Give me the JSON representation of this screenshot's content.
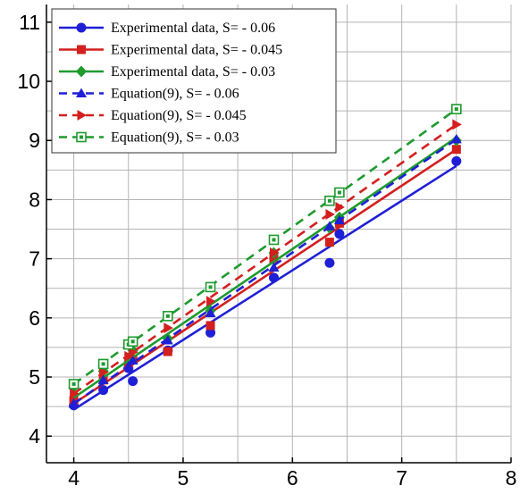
{
  "chart_data": {
    "type": "line",
    "title": "",
    "xlabel": "",
    "ylabel": "",
    "xlim": [
      3.75,
      8
    ],
    "ylim": [
      3.55,
      11.3
    ],
    "x_ticks": [
      "4",
      "5",
      "6",
      "7",
      "8"
    ],
    "y_ticks": [
      "4",
      "5",
      "6",
      "7",
      "8",
      "9",
      "10",
      "11"
    ],
    "grid": true,
    "legend_position": "top-left",
    "series": [
      {
        "name": "Experimental data, S= - 0.06",
        "color": "#1f1fd6",
        "dash": "solid",
        "marker": "circle",
        "points": [
          [
            4.0,
            4.52
          ],
          [
            4.27,
            4.78
          ],
          [
            4.5,
            5.15
          ],
          [
            4.54,
            4.93
          ],
          [
            4.86,
            5.45
          ],
          [
            5.25,
            5.75
          ],
          [
            5.83,
            6.68
          ],
          [
            6.34,
            6.93
          ],
          [
            6.43,
            7.42
          ],
          [
            7.5,
            8.65
          ]
        ],
        "trend": [
          [
            4.0,
            4.45
          ],
          [
            7.5,
            8.57
          ]
        ]
      },
      {
        "name": "Experimental data, S= - 0.045",
        "color": "#d41f1f",
        "dash": "solid",
        "marker": "square",
        "points": [
          [
            4.0,
            4.6
          ],
          [
            4.27,
            4.95
          ],
          [
            4.5,
            5.2
          ],
          [
            4.54,
            5.3
          ],
          [
            4.86,
            5.43
          ],
          [
            5.25,
            5.87
          ],
          [
            5.83,
            7.0
          ],
          [
            6.34,
            7.28
          ],
          [
            6.43,
            7.6
          ],
          [
            7.5,
            8.85
          ]
        ],
        "trend": [
          [
            4.0,
            4.55
          ],
          [
            7.5,
            8.85
          ]
        ]
      },
      {
        "name": "Experimental data, S= - 0.03",
        "color": "#1e9a2e",
        "dash": "solid",
        "marker": "diamond",
        "points": [
          [
            4.0,
            4.83
          ],
          [
            4.27,
            5.1
          ],
          [
            4.5,
            5.32
          ],
          [
            4.54,
            5.45
          ],
          [
            4.86,
            5.65
          ],
          [
            5.25,
            6.12
          ],
          [
            5.83,
            7.1
          ],
          [
            6.34,
            7.52
          ],
          [
            6.43,
            7.7
          ],
          [
            7.5,
            9.0
          ]
        ],
        "trend": [
          [
            4.0,
            4.65
          ],
          [
            7.5,
            9.05
          ]
        ]
      },
      {
        "name": "Equation(9), S= - 0.06",
        "color": "#1f1fd6",
        "dash": "dashed",
        "marker": "triangle-up",
        "points": [
          [
            4.0,
            4.55
          ],
          [
            4.27,
            4.95
          ],
          [
            4.5,
            5.18
          ],
          [
            4.54,
            5.28
          ],
          [
            4.86,
            5.62
          ],
          [
            5.25,
            6.08
          ],
          [
            5.83,
            6.85
          ],
          [
            6.34,
            7.55
          ],
          [
            6.43,
            7.65
          ],
          [
            7.5,
            9.02
          ]
        ],
        "trend": [
          [
            4.0,
            4.55
          ],
          [
            7.5,
            9.02
          ]
        ]
      },
      {
        "name": "Equation(9), S= - 0.045",
        "color": "#d41f1f",
        "dash": "dashed",
        "marker": "triangle-right",
        "points": [
          [
            4.0,
            4.72
          ],
          [
            4.27,
            5.08
          ],
          [
            4.5,
            5.35
          ],
          [
            4.54,
            5.42
          ],
          [
            4.86,
            5.83
          ],
          [
            5.25,
            6.28
          ],
          [
            5.83,
            7.1
          ],
          [
            6.34,
            7.75
          ],
          [
            6.43,
            7.87
          ],
          [
            7.5,
            9.27
          ]
        ],
        "trend": [
          [
            4.0,
            4.72
          ],
          [
            7.5,
            9.27
          ]
        ]
      },
      {
        "name": "Equation(9), S= - 0.03",
        "color": "#1e9a2e",
        "dash": "dashed",
        "marker": "square-open",
        "points": [
          [
            4.0,
            4.88
          ],
          [
            4.27,
            5.22
          ],
          [
            4.5,
            5.55
          ],
          [
            4.54,
            5.6
          ],
          [
            4.86,
            6.03
          ],
          [
            5.25,
            6.52
          ],
          [
            5.83,
            7.32
          ],
          [
            6.34,
            7.98
          ],
          [
            6.43,
            8.12
          ],
          [
            7.5,
            9.53
          ]
        ],
        "trend": [
          [
            4.0,
            4.88
          ],
          [
            7.5,
            9.53
          ]
        ]
      }
    ]
  }
}
